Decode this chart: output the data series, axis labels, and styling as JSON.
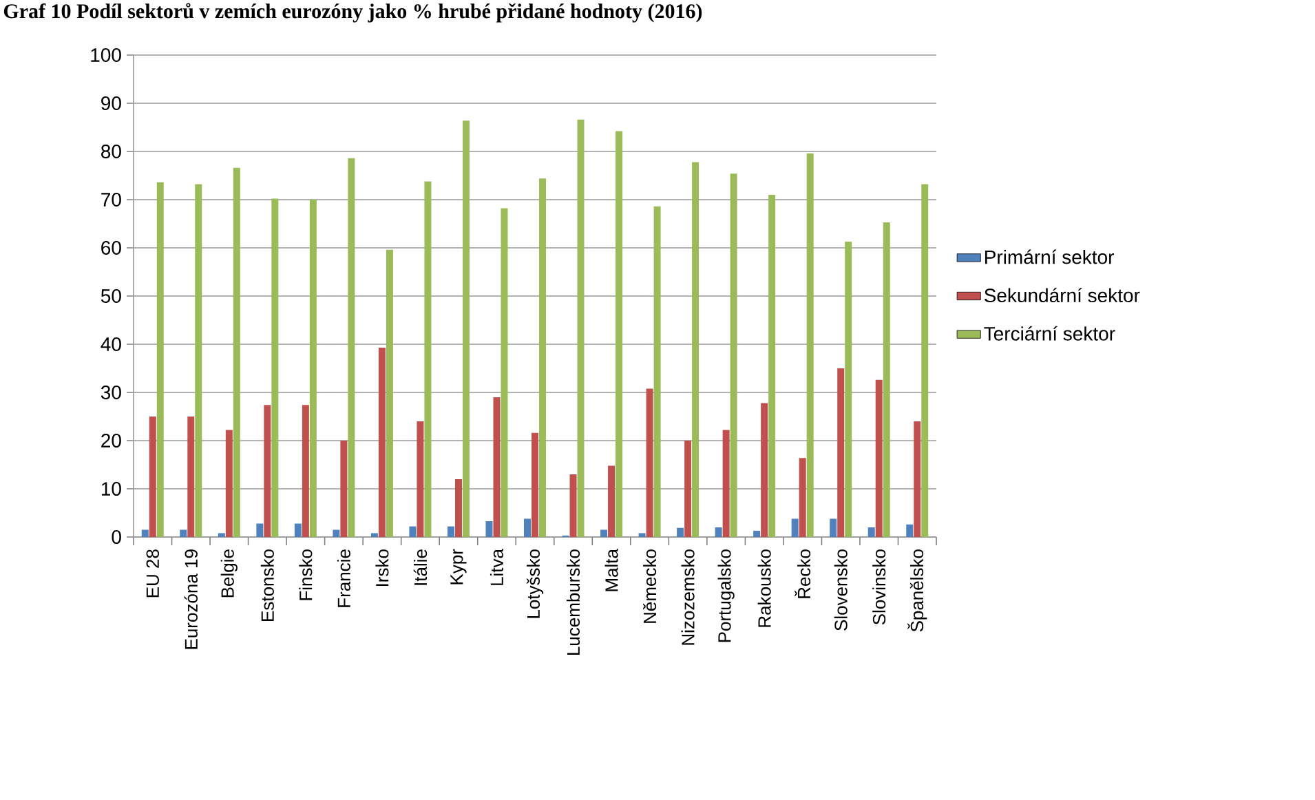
{
  "chart_data": {
    "type": "bar",
    "title": "Graf 10 Podíl sektorů v zemích eurozóny jako % hrubé přidané hodnoty (2016)",
    "categories": [
      "EU 28",
      "Eurozóna 19",
      "Belgie",
      "Estonsko",
      "Finsko",
      "Francie",
      "Irsko",
      "Itálie",
      "Kypr",
      "Litva",
      "Lotyšsko",
      "Lucembursko",
      "Malta",
      "Německo",
      "Nizozemsko",
      "Portugalsko",
      "Rakousko",
      "Řecko",
      "Slovensko",
      "Slovinsko",
      "Španělsko"
    ],
    "series": [
      {
        "name": "Primární sektor",
        "color": "#4f81bd",
        "values": [
          1.5,
          1.5,
          0.8,
          2.8,
          2.8,
          1.5,
          0.8,
          2.2,
          2.2,
          3.3,
          3.8,
          0.3,
          1.5,
          0.8,
          1.9,
          2.0,
          1.3,
          3.8,
          3.8,
          2.0,
          2.6
        ]
      },
      {
        "name": "Sekundární sektor",
        "color": "#c0504d",
        "values": [
          25,
          25,
          22.2,
          27.4,
          27.4,
          20,
          39.3,
          24,
          12,
          29,
          21.6,
          13,
          14.8,
          30.8,
          20,
          22.2,
          27.8,
          16.4,
          35,
          32.6,
          24
        ]
      },
      {
        "name": "Terciární sektor",
        "color": "#9bbb59",
        "values": [
          73.6,
          73.2,
          76.6,
          70.2,
          70,
          78.6,
          59.6,
          73.8,
          86.4,
          68.2,
          74.4,
          86.6,
          84.2,
          68.6,
          77.8,
          75.4,
          71,
          79.6,
          61.3,
          65.3,
          73.2
        ]
      }
    ],
    "ylim": [
      0,
      100
    ],
    "yticks": [
      0,
      10,
      20,
      30,
      40,
      50,
      60,
      70,
      80,
      90,
      100
    ],
    "grid": "y",
    "legend": "right"
  }
}
